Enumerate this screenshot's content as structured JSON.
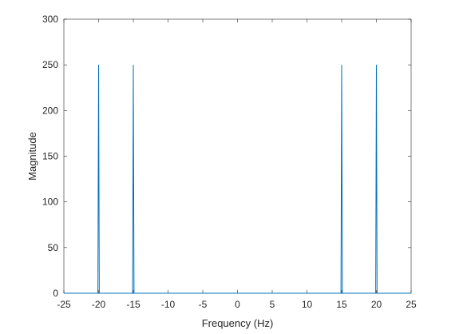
{
  "chart_data": {
    "type": "line",
    "xlabel": "Frequency (Hz)",
    "ylabel": "Magnitude",
    "x": [
      -25,
      -20.1,
      -20,
      -19.9,
      -15.1,
      -15,
      -14.9,
      14.9,
      15,
      15.1,
      19.9,
      20,
      20.1,
      25
    ],
    "values": [
      0,
      0,
      250,
      0,
      0,
      250,
      0,
      0,
      250,
      0,
      0,
      250,
      0,
      0
    ],
    "color": "#0072bd",
    "xlim": [
      -25,
      25
    ],
    "xticks": [
      -25,
      -20,
      -15,
      -10,
      -5,
      0,
      5,
      10,
      15,
      20,
      25
    ],
    "ylim": [
      0,
      300
    ],
    "yticks": [
      0,
      50,
      100,
      150,
      200,
      250,
      300
    ]
  }
}
